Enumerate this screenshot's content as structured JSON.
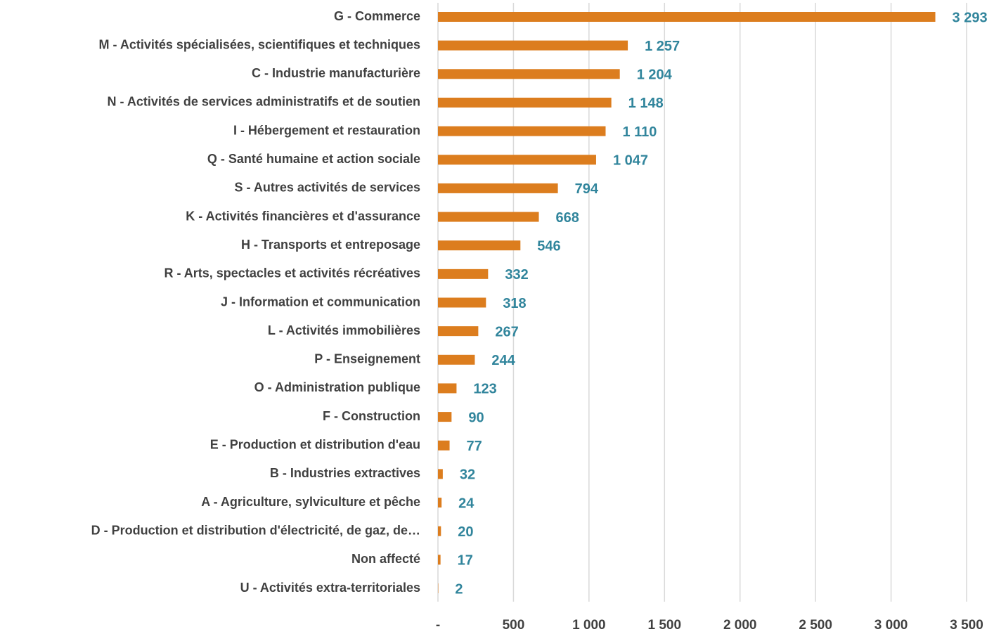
{
  "chart_data": {
    "type": "bar",
    "orientation": "horizontal",
    "categories": [
      "G - Commerce",
      "M - Activités spécialisées, scientifiques et techniques",
      "C - Industrie manufacturière",
      "N - Activités de services administratifs et de soutien",
      "I - Hébergement et restauration",
      "Q - Santé humaine et action sociale",
      "S - Autres activités de services",
      "K - Activités financières et d'assurance",
      "H - Transports et entreposage",
      "R - Arts, spectacles et activités récréatives",
      "J - Information et communication",
      "L - Activités immobilières",
      "P - Enseignement",
      "O - Administration publique",
      "F - Construction",
      "E - Production et distribution d'eau",
      "B - Industries extractives",
      "A - Agriculture, sylviculture et pêche",
      "D - Production et distribution d'électricité, de gaz, de…",
      "Non affecté",
      "U - Activités extra-territoriales"
    ],
    "values": [
      3293,
      1257,
      1204,
      1148,
      1110,
      1047,
      794,
      668,
      546,
      332,
      318,
      267,
      244,
      123,
      90,
      77,
      32,
      24,
      20,
      17,
      2
    ],
    "value_labels": [
      "3 293",
      "1 257",
      "1 204",
      "1 148",
      "1 110",
      "1 047",
      "794",
      "668",
      "546",
      "332",
      "318",
      "267",
      "244",
      "123",
      "90",
      "77",
      "32",
      "24",
      "20",
      "17",
      "2"
    ],
    "color": "#dc7d1e",
    "xlim": [
      0,
      3500
    ],
    "xticks": [
      {
        "value": 0,
        "label": "-"
      },
      500,
      {
        "value": 1000,
        "label": "1 000"
      },
      {
        "value": 1500,
        "label": "1 500"
      },
      {
        "value": 2000,
        "label": "2 000"
      },
      {
        "value": 2500,
        "label": "2 500"
      },
      {
        "value": 3000,
        "label": "3 000"
      },
      {
        "value": 3500,
        "label": "3 500"
      }
    ],
    "grid": true
  }
}
